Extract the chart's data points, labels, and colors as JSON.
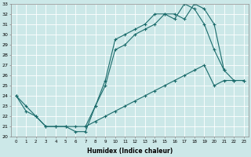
{
  "xlabel": "Humidex (Indice chaleur)",
  "series": [
    {
      "x": [
        0,
        1,
        2,
        3,
        4,
        5,
        6,
        7,
        8,
        9,
        10,
        11,
        12,
        13,
        14,
        15,
        16,
        17,
        18,
        19,
        20,
        21
      ],
      "y": [
        24,
        23,
        22,
        21,
        21,
        21,
        20.5,
        20.5,
        23,
        25.5,
        29.5,
        30,
        30.5,
        31,
        32,
        32,
        31.5,
        33,
        32.5,
        31,
        28.5,
        26.5
      ]
    },
    {
      "x": [
        0,
        1,
        2,
        3,
        4,
        5,
        6,
        7,
        8,
        9,
        10,
        11,
        12,
        13,
        14,
        15,
        16,
        17,
        18,
        19,
        20,
        21,
        22,
        23
      ],
      "y": [
        24,
        22.5,
        22,
        21,
        21,
        21,
        21,
        21,
        21.5,
        22,
        22.5,
        23,
        23.5,
        24,
        24.5,
        25,
        25.5,
        26,
        26.5,
        27,
        25,
        25.5,
        25.5,
        25.5
      ]
    },
    {
      "x": [
        7,
        8,
        9,
        10,
        11,
        12,
        13,
        14,
        15,
        16,
        17,
        18,
        19,
        20,
        21,
        22,
        23
      ],
      "y": [
        21,
        23,
        25,
        28.5,
        29,
        30,
        30.5,
        31,
        32,
        32,
        31.5,
        33,
        32.5,
        31,
        26.5,
        25.5,
        25.5
      ]
    }
  ],
  "line_color": "#1a6b6b",
  "bg_color": "#cce8e8",
  "grid_color": "#ffffff",
  "ylim": [
    20,
    33
  ],
  "xlim": [
    -0.5,
    23.5
  ],
  "yticks": [
    20,
    21,
    22,
    23,
    24,
    25,
    26,
    27,
    28,
    29,
    30,
    31,
    32,
    33
  ],
  "xticks": [
    0,
    1,
    2,
    3,
    4,
    5,
    6,
    7,
    8,
    9,
    10,
    11,
    12,
    13,
    14,
    15,
    16,
    17,
    18,
    19,
    20,
    21,
    22,
    23
  ],
  "marker": "+",
  "markersize": 3,
  "linewidth": 0.8
}
